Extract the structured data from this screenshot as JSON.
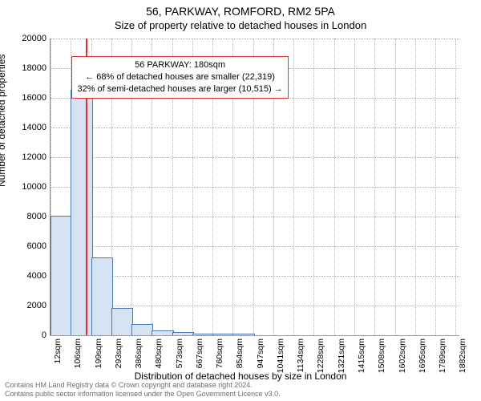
{
  "title_line1": "56, PARKWAY, ROMFORD, RM2 5PA",
  "title_line2": "Size of property relative to detached houses in London",
  "y_axis_title": "Number of detached properties",
  "x_axis_title": "Distribution of detached houses by size in London",
  "footer_line1": "Contains HM Land Registry data © Crown copyright and database right 2024.",
  "footer_line2": "Contains public sector information licensed under the Open Government Licence v3.0.",
  "chart": {
    "type": "histogram",
    "background_color": "#ffffff",
    "grid_color": "#b0b0b0",
    "axis_color": "#888888",
    "bar_fill": "#d6e3f3",
    "bar_stroke": "#4a78b5",
    "marker_color": "#e03030",
    "annotation_border": "#e03030",
    "text_color": "#000000",
    "y_min": 0,
    "y_max": 20000,
    "y_tick_step": 2000,
    "x_min": 12,
    "x_max": 1900,
    "x_ticks": [
      12,
      106,
      199,
      293,
      386,
      480,
      573,
      667,
      760,
      854,
      947,
      1041,
      1134,
      1228,
      1321,
      1415,
      1508,
      1602,
      1695,
      1789,
      1882
    ],
    "x_tick_unit": "sqm",
    "bars": [
      {
        "x0": 12,
        "x1": 106,
        "count": 8000
      },
      {
        "x0": 106,
        "x1": 199,
        "count": 16500
      },
      {
        "x0": 199,
        "x1": 293,
        "count": 5200
      },
      {
        "x0": 293,
        "x1": 386,
        "count": 1800
      },
      {
        "x0": 386,
        "x1": 480,
        "count": 700
      },
      {
        "x0": 480,
        "x1": 573,
        "count": 250
      },
      {
        "x0": 573,
        "x1": 667,
        "count": 150
      },
      {
        "x0": 667,
        "x1": 760,
        "count": 80
      },
      {
        "x0": 760,
        "x1": 854,
        "count": 50
      },
      {
        "x0": 854,
        "x1": 947,
        "count": 30
      }
    ],
    "marker": {
      "x": 180
    },
    "annotation": {
      "line1": "56 PARKWAY: 180sqm",
      "line2": "← 68% of detached houses are smaller (22,319)",
      "line3": "32% of semi-detached houses are larger (10,515) →",
      "top_frac_from_y": 18800,
      "left_x": 110
    }
  }
}
